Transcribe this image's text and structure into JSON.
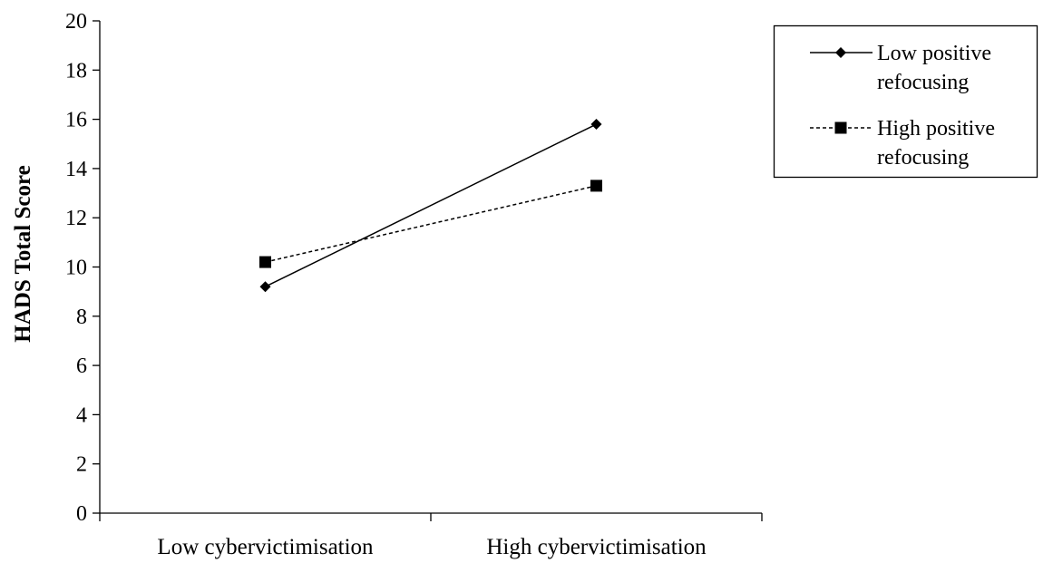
{
  "chart_data": {
    "type": "line",
    "title": "",
    "xlabel": "",
    "ylabel": "HADS Total Score",
    "categories": [
      "Low cybervictimisation",
      "High cybervictimisation"
    ],
    "ylim": [
      0,
      20
    ],
    "yticks": [
      0,
      2,
      4,
      6,
      8,
      10,
      12,
      14,
      16,
      18,
      20
    ],
    "grid": false,
    "legend_position": "top-right",
    "series": [
      {
        "name": "Low positive refocusing",
        "name_lines": [
          "Low positive",
          "refocusing"
        ],
        "values": [
          9.2,
          15.8
        ],
        "marker": "diamond",
        "line_style": "solid",
        "color": "#000000"
      },
      {
        "name": "High positive refocusing",
        "name_lines": [
          "High positive",
          "refocusing"
        ],
        "values": [
          10.2,
          13.3
        ],
        "marker": "square",
        "line_style": "dashed",
        "color": "#000000"
      }
    ]
  }
}
